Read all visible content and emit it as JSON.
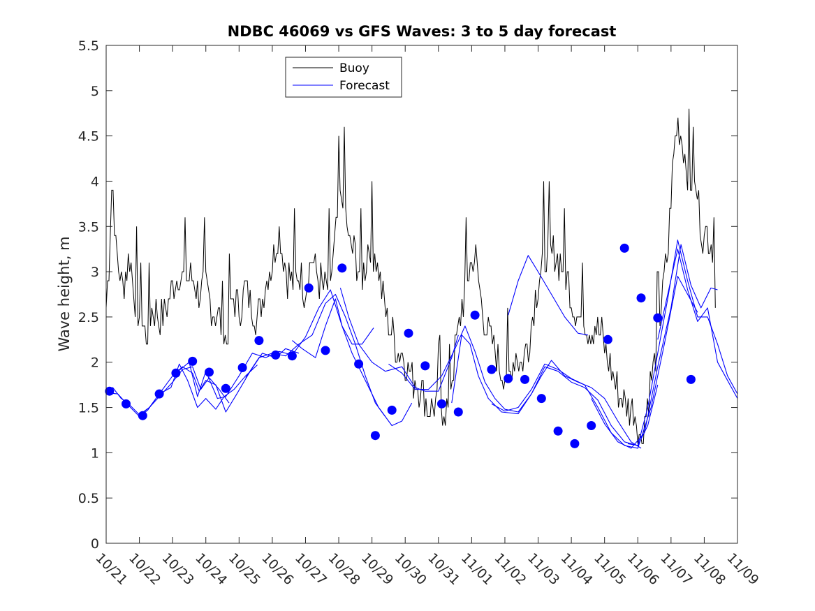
{
  "chart_data": {
    "type": "line",
    "title": "NDBC 46069 vs GFS Waves: 3 to 5 day forecast",
    "xlabel": "",
    "ylabel": "Wave height, m",
    "x_range_days": [
      0,
      19
    ],
    "x_tick_labels": [
      "10/21",
      "10/22",
      "10/23",
      "10/24",
      "10/25",
      "10/26",
      "10/27",
      "10/28",
      "10/29",
      "10/30",
      "10/31",
      "11/01",
      "11/02",
      "11/03",
      "11/04",
      "11/05",
      "11/06",
      "11/07",
      "11/08",
      "11/09"
    ],
    "ylim": [
      0,
      5.5
    ],
    "y_ticks": [
      "0",
      "0.5",
      "1",
      "1.5",
      "2",
      "2.5",
      "3",
      "3.5",
      "4",
      "4.5",
      "5",
      "5.5"
    ],
    "grid": false,
    "legend": {
      "placement": "top-left",
      "entries": [
        "Buoy",
        "Forecast"
      ]
    },
    "colors": {
      "buoy": "#000000",
      "forecast": "#0000ff"
    },
    "buoy_anchors": [
      [
        0.0,
        2.6
      ],
      [
        0.1,
        3.2
      ],
      [
        0.18,
        4.1
      ],
      [
        0.3,
        3.2
      ],
      [
        0.5,
        2.8
      ],
      [
        0.7,
        3.2
      ],
      [
        0.85,
        2.8
      ],
      [
        1.0,
        2.5
      ],
      [
        1.2,
        2.3
      ],
      [
        1.4,
        2.6
      ],
      [
        1.6,
        2.5
      ],
      [
        1.8,
        2.6
      ],
      [
        2.0,
        2.8
      ],
      [
        2.2,
        3.0
      ],
      [
        2.4,
        2.9
      ],
      [
        2.6,
        2.9
      ],
      [
        2.8,
        2.8
      ],
      [
        3.0,
        2.8
      ],
      [
        3.2,
        2.6
      ],
      [
        3.4,
        2.5
      ],
      [
        3.6,
        2.2
      ],
      [
        3.8,
        2.7
      ],
      [
        4.0,
        2.6
      ],
      [
        4.2,
        2.8
      ],
      [
        4.4,
        2.6
      ],
      [
        4.6,
        2.5
      ],
      [
        4.8,
        2.9
      ],
      [
        5.0,
        3.1
      ],
      [
        5.2,
        3.5
      ],
      [
        5.4,
        3.0
      ],
      [
        5.6,
        2.9
      ],
      [
        5.8,
        3.0
      ],
      [
        6.0,
        2.8
      ],
      [
        6.2,
        3.2
      ],
      [
        6.4,
        2.9
      ],
      [
        6.6,
        2.8
      ],
      [
        6.8,
        3.0
      ],
      [
        7.0,
        3.7
      ],
      [
        7.15,
        3.9
      ],
      [
        7.3,
        3.3
      ],
      [
        7.5,
        3.2
      ],
      [
        7.7,
        2.9
      ],
      [
        7.9,
        3.3
      ],
      [
        8.1,
        3.2
      ],
      [
        8.3,
        2.8
      ],
      [
        8.5,
        2.4
      ],
      [
        8.7,
        2.2
      ],
      [
        8.9,
        2.1
      ],
      [
        9.1,
        1.9
      ],
      [
        9.3,
        1.8
      ],
      [
        9.5,
        1.7
      ],
      [
        9.7,
        1.5
      ],
      [
        9.9,
        1.5
      ],
      [
        10.1,
        1.5
      ],
      [
        10.3,
        1.5
      ],
      [
        10.5,
        2.1
      ],
      [
        10.7,
        2.6
      ],
      [
        10.9,
        3.0
      ],
      [
        11.1,
        3.2
      ],
      [
        11.3,
        2.6
      ],
      [
        11.5,
        2.3
      ],
      [
        11.7,
        2.1
      ],
      [
        11.9,
        1.9
      ],
      [
        12.1,
        1.8
      ],
      [
        12.3,
        2.1
      ],
      [
        12.5,
        2.0
      ],
      [
        12.7,
        2.2
      ],
      [
        12.9,
        2.7
      ],
      [
        13.1,
        3.1
      ],
      [
        13.3,
        3.2
      ],
      [
        13.5,
        3.2
      ],
      [
        13.7,
        3.1
      ],
      [
        13.9,
        2.9
      ],
      [
        14.1,
        2.6
      ],
      [
        14.3,
        2.5
      ],
      [
        14.5,
        2.4
      ],
      [
        14.7,
        2.4
      ],
      [
        14.9,
        2.3
      ],
      [
        15.1,
        2.0
      ],
      [
        15.3,
        1.8
      ],
      [
        15.5,
        1.6
      ],
      [
        15.7,
        1.5
      ],
      [
        15.9,
        1.5
      ],
      [
        16.1,
        1.1
      ],
      [
        16.3,
        1.6
      ],
      [
        16.5,
        2.0
      ],
      [
        16.7,
        2.6
      ],
      [
        16.9,
        3.2
      ],
      [
        17.1,
        4.4
      ],
      [
        17.2,
        4.7
      ],
      [
        17.4,
        4.3
      ],
      [
        17.6,
        4.0
      ],
      [
        17.8,
        3.8
      ],
      [
        18.0,
        3.3
      ],
      [
        18.2,
        3.5
      ],
      [
        18.35,
        2.7
      ]
    ],
    "forecast_segments": [
      [
        [
          0,
          1.68
        ],
        [
          0.2,
          1.72
        ],
        [
          0.45,
          1.6
        ],
        [
          0.65,
          1.55
        ],
        [
          1.0,
          1.42
        ],
        [
          1.3,
          1.5
        ],
        [
          1.6,
          1.62
        ],
        [
          2.0,
          1.78
        ],
        [
          2.3,
          1.92
        ],
        [
          2.6,
          1.95
        ],
        [
          2.85,
          1.7
        ],
        [
          3.1,
          1.83
        ],
        [
          3.4,
          1.7
        ],
        [
          3.7,
          1.55
        ]
      ],
      [
        [
          0.05,
          1.66
        ],
        [
          0.35,
          1.65
        ],
        [
          0.6,
          1.55
        ],
        [
          1.0,
          1.4
        ],
        [
          1.25,
          1.47
        ],
        [
          1.6,
          1.65
        ],
        [
          1.95,
          1.72
        ],
        [
          2.2,
          1.98
        ],
        [
          2.45,
          1.8
        ],
        [
          2.75,
          1.5
        ],
        [
          3.0,
          1.6
        ],
        [
          3.3,
          1.48
        ],
        [
          3.55,
          1.62
        ],
        [
          3.85,
          1.7
        ],
        [
          4.2,
          1.85
        ],
        [
          4.55,
          1.97
        ]
      ],
      [
        [
          1.0,
          1.41
        ],
        [
          1.3,
          1.5
        ],
        [
          1.7,
          1.7
        ],
        [
          2.0,
          1.85
        ],
        [
          2.3,
          1.95
        ],
        [
          2.6,
          1.88
        ],
        [
          2.8,
          1.68
        ],
        [
          3.0,
          1.8
        ],
        [
          3.3,
          1.75
        ],
        [
          3.6,
          1.45
        ],
        [
          3.9,
          1.63
        ],
        [
          4.3,
          1.88
        ],
        [
          4.7,
          2.1
        ],
        [
          5.1,
          2.05
        ],
        [
          5.4,
          2.15
        ],
        [
          5.8,
          2.1
        ]
      ],
      [
        [
          2.1,
          1.88
        ],
        [
          2.5,
          2.0
        ],
        [
          2.75,
          1.62
        ],
        [
          3.0,
          1.9
        ],
        [
          3.35,
          1.6
        ],
        [
          3.6,
          1.62
        ],
        [
          4.0,
          1.85
        ],
        [
          4.4,
          2.1
        ],
        [
          4.8,
          2.05
        ],
        [
          5.2,
          2.12
        ],
        [
          5.6,
          2.08
        ],
        [
          6.0,
          2.28
        ],
        [
          6.4,
          2.6
        ],
        [
          6.75,
          2.8
        ],
        [
          7.1,
          2.4
        ],
        [
          7.4,
          2.2
        ],
        [
          7.7,
          2.2
        ],
        [
          8.05,
          2.38
        ]
      ],
      [
        [
          4.2,
          1.83
        ],
        [
          4.6,
          2.05
        ],
        [
          5.0,
          2.1
        ],
        [
          5.4,
          2.07
        ],
        [
          5.8,
          2.2
        ],
        [
          6.2,
          2.3
        ],
        [
          6.6,
          2.65
        ],
        [
          6.9,
          2.75
        ],
        [
          7.2,
          2.5
        ],
        [
          7.5,
          2.2
        ],
        [
          7.8,
          1.85
        ],
        [
          8.1,
          1.55
        ],
        [
          8.4,
          1.4
        ]
      ],
      [
        [
          5.6,
          2.24
        ],
        [
          5.9,
          2.15
        ],
        [
          6.3,
          2.05
        ],
        [
          6.6,
          2.4
        ],
        [
          6.9,
          2.7
        ],
        [
          7.1,
          2.4
        ],
        [
          7.4,
          2.1
        ],
        [
          7.8,
          1.8
        ],
        [
          8.2,
          1.5
        ],
        [
          8.6,
          1.3
        ],
        [
          8.9,
          1.35
        ],
        [
          9.2,
          1.55
        ]
      ],
      [
        [
          7.05,
          2.82
        ],
        [
          7.3,
          2.5
        ],
        [
          7.6,
          2.2
        ],
        [
          8.0,
          2.0
        ],
        [
          8.4,
          1.9
        ],
        [
          8.9,
          1.95
        ],
        [
          9.3,
          1.72
        ],
        [
          9.6,
          1.68
        ],
        [
          10.0,
          1.68
        ],
        [
          10.4,
          2.05
        ],
        [
          10.6,
          2.3
        ]
      ],
      [
        [
          8.5,
          1.98
        ],
        [
          8.9,
          1.88
        ],
        [
          9.3,
          1.7
        ],
        [
          9.7,
          1.7
        ],
        [
          10.1,
          1.85
        ],
        [
          10.5,
          2.15
        ],
        [
          10.8,
          2.4
        ],
        [
          11.1,
          2.12
        ],
        [
          11.4,
          1.78
        ],
        [
          11.7,
          1.6
        ],
        [
          12.0,
          1.48
        ],
        [
          12.4,
          1.45
        ],
        [
          12.8,
          1.65
        ],
        [
          13.1,
          1.85
        ],
        [
          13.4,
          2.02
        ],
        [
          13.8,
          1.85
        ],
        [
          14.2,
          1.78
        ],
        [
          14.6,
          1.72
        ],
        [
          15.0,
          1.6
        ],
        [
          15.4,
          1.35
        ],
        [
          15.8,
          1.12
        ],
        [
          16.1,
          1.05
        ]
      ],
      [
        [
          10.4,
          1.55
        ],
        [
          10.7,
          2.3
        ],
        [
          10.95,
          2.2
        ],
        [
          11.2,
          1.85
        ],
        [
          11.5,
          1.6
        ],
        [
          11.9,
          1.45
        ],
        [
          12.4,
          1.43
        ],
        [
          12.8,
          1.65
        ],
        [
          13.2,
          1.95
        ],
        [
          13.6,
          1.9
        ],
        [
          14.0,
          1.78
        ],
        [
          14.4,
          1.72
        ],
        [
          14.8,
          1.58
        ],
        [
          15.2,
          1.3
        ],
        [
          15.6,
          1.12
        ],
        [
          16.0,
          1.08
        ],
        [
          16.3,
          1.3
        ],
        [
          16.6,
          1.75
        ]
      ],
      [
        [
          11.6,
          1.54
        ],
        [
          12.0,
          1.46
        ],
        [
          12.4,
          1.5
        ],
        [
          12.8,
          1.7
        ],
        [
          13.2,
          1.98
        ],
        [
          13.6,
          1.92
        ],
        [
          14.0,
          1.82
        ],
        [
          14.4,
          1.75
        ],
        [
          14.8,
          1.5
        ],
        [
          15.2,
          1.22
        ],
        [
          15.6,
          1.08
        ],
        [
          16.0,
          1.05
        ],
        [
          16.4,
          1.5
        ],
        [
          16.8,
          2.2
        ],
        [
          17.2,
          2.95
        ],
        [
          17.5,
          2.75
        ],
        [
          17.8,
          2.55
        ]
      ],
      [
        [
          12.1,
          2.52
        ],
        [
          12.4,
          2.9
        ],
        [
          12.7,
          3.18
        ],
        [
          13.0,
          3.0
        ],
        [
          13.4,
          2.75
        ],
        [
          13.8,
          2.5
        ],
        [
          14.2,
          2.32
        ],
        [
          14.5,
          2.3
        ]
      ],
      [
        [
          14.6,
          1.6
        ],
        [
          15.0,
          1.32
        ],
        [
          15.4,
          1.12
        ],
        [
          15.8,
          1.05
        ],
        [
          16.2,
          1.22
        ],
        [
          16.6,
          1.95
        ],
        [
          17.0,
          2.6
        ],
        [
          17.3,
          3.3
        ],
        [
          17.6,
          2.85
        ],
        [
          17.9,
          2.6
        ],
        [
          18.2,
          2.82
        ],
        [
          18.4,
          2.8
        ]
      ],
      [
        [
          15.7,
          1.1
        ],
        [
          16.0,
          1.08
        ],
        [
          16.3,
          1.5
        ],
        [
          16.6,
          2.1
        ],
        [
          16.9,
          2.7
        ],
        [
          17.2,
          3.35
        ],
        [
          17.5,
          2.9
        ],
        [
          17.8,
          2.5
        ],
        [
          18.1,
          2.5
        ],
        [
          18.4,
          2.2
        ],
        [
          18.7,
          1.85
        ],
        [
          19.0,
          1.65
        ]
      ],
      [
        [
          16.6,
          2.25
        ],
        [
          16.9,
          2.75
        ],
        [
          17.2,
          3.25
        ],
        [
          17.5,
          2.8
        ],
        [
          17.8,
          2.45
        ],
        [
          18.1,
          2.6
        ],
        [
          18.4,
          2.0
        ],
        [
          18.7,
          1.8
        ],
        [
          19.0,
          1.6
        ]
      ]
    ],
    "forecast_markers": [
      [
        0.1,
        1.68
      ],
      [
        0.6,
        1.54
      ],
      [
        1.1,
        1.41
      ],
      [
        1.6,
        1.65
      ],
      [
        2.1,
        1.88
      ],
      [
        2.6,
        2.01
      ],
      [
        3.1,
        1.89
      ],
      [
        3.6,
        1.71
      ],
      [
        4.1,
        1.94
      ],
      [
        4.6,
        2.24
      ],
      [
        5.1,
        2.08
      ],
      [
        5.6,
        2.07
      ],
      [
        6.1,
        2.82
      ],
      [
        6.6,
        2.13
      ],
      [
        7.1,
        3.04
      ],
      [
        7.6,
        1.98
      ],
      [
        8.1,
        1.19
      ],
      [
        8.6,
        1.47
      ],
      [
        9.1,
        2.32
      ],
      [
        9.6,
        1.96
      ],
      [
        10.1,
        1.54
      ],
      [
        10.6,
        1.45
      ],
      [
        11.1,
        2.52
      ],
      [
        11.6,
        1.92
      ],
      [
        12.1,
        1.82
      ],
      [
        12.6,
        1.81
      ],
      [
        13.1,
        1.6
      ],
      [
        13.6,
        1.24
      ],
      [
        14.1,
        1.1
      ],
      [
        14.6,
        1.3
      ],
      [
        15.1,
        2.25
      ],
      [
        15.6,
        3.26
      ],
      [
        16.1,
        2.71
      ],
      [
        16.6,
        2.49
      ],
      [
        17.6,
        1.81
      ]
    ]
  }
}
